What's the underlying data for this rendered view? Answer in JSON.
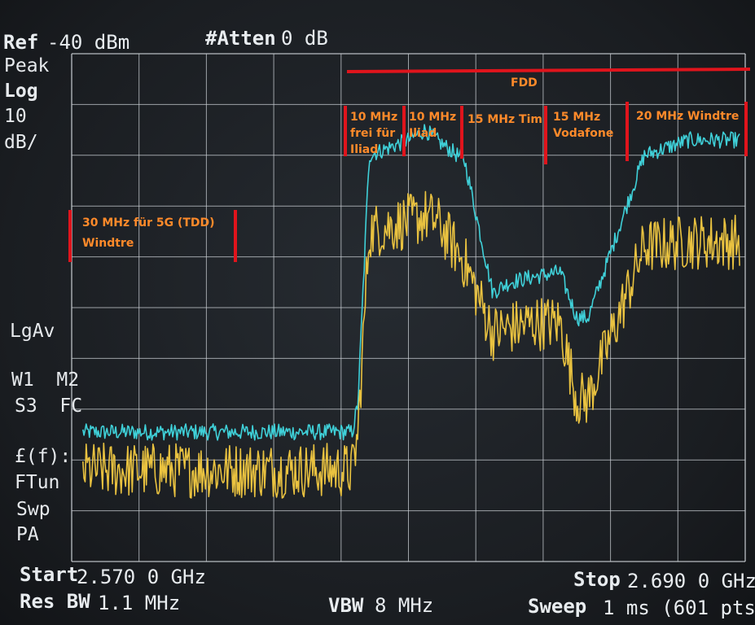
{
  "header": {
    "ref_label": "Ref",
    "ref_value": "-40 dBm",
    "atten_label": "#Atten",
    "atten_value": "0 dB"
  },
  "left_panel": {
    "detector": "Peak",
    "scale_type": "Log",
    "scale_value": "10",
    "scale_unit": "dB/",
    "avg_label": "LgAv",
    "trace_row1": "W1  M2",
    "trace_row2": "S3  FC",
    "func_label": "£(f):",
    "ftun": "FTun",
    "swp": "Swp",
    "pa": "PA"
  },
  "footer": {
    "start_label": "Start",
    "start_value": "2.570 0 GHz",
    "stop_label": "Stop",
    "stop_value": "2.690 0 GHz",
    "resbw_label": "Res BW",
    "resbw_value": "1.1 MHz",
    "vbw_label": "VBW",
    "vbw_value": "8 MHz",
    "sweep_label": "Sweep",
    "sweep_value": "1 ms (601 pts)"
  },
  "annotations": {
    "fdd": "FDD",
    "tdd_line1": "30 MHz für 5G (TDD)",
    "tdd_line2": "Windtre",
    "free_line1": "10 MHz",
    "free_line2": "frei für",
    "free_line3": "Iliad",
    "iliad_line1": "10 MHz",
    "iliad_line2": "Iliad",
    "tim": "15 MHz Tim",
    "voda_line1": "15 MHz",
    "voda_line2": "Vodafone",
    "windtre20": "20 MHz Windtre"
  },
  "colors": {
    "grid": "#c9ced3",
    "trace_peak": "#3fd0d8",
    "trace_avg": "#e9c240",
    "annotation_text": "#ff8a2a",
    "annotation_marker": "#e0141c"
  },
  "chart_data": {
    "type": "line",
    "x_range_ghz": [
      2.57,
      2.69
    ],
    "y_range_dbm": [
      -140,
      -40
    ],
    "series": [
      {
        "values_x_ghz": [
          2.572,
          2.62,
          2.621,
          2.623,
          2.63,
          2.633,
          2.635,
          2.64,
          2.645,
          2.648,
          2.652,
          2.657,
          2.66,
          2.662,
          2.672,
          2.68,
          2.689
        ],
        "values_y_dbm": [
          -114.5,
          -114.5,
          -109,
          -60,
          -57,
          -55,
          -57,
          -61,
          -87,
          -85,
          -84,
          -83,
          -92,
          -92,
          -60,
          -57,
          -57
        ]
      },
      {
        "values_x_ghz": [
          2.572,
          2.62,
          2.621,
          2.623,
          2.63,
          2.633,
          2.635,
          2.64,
          2.645,
          2.648,
          2.652,
          2.657,
          2.66,
          2.662,
          2.672,
          2.68,
          2.689
        ],
        "values_y_dbm": [
          -122,
          -122,
          -115,
          -75,
          -73,
          -72,
          -73,
          -81,
          -95,
          -94,
          -93,
          -93,
          -108,
          -108,
          -78,
          -77,
          -77
        ]
      }
    ]
  }
}
